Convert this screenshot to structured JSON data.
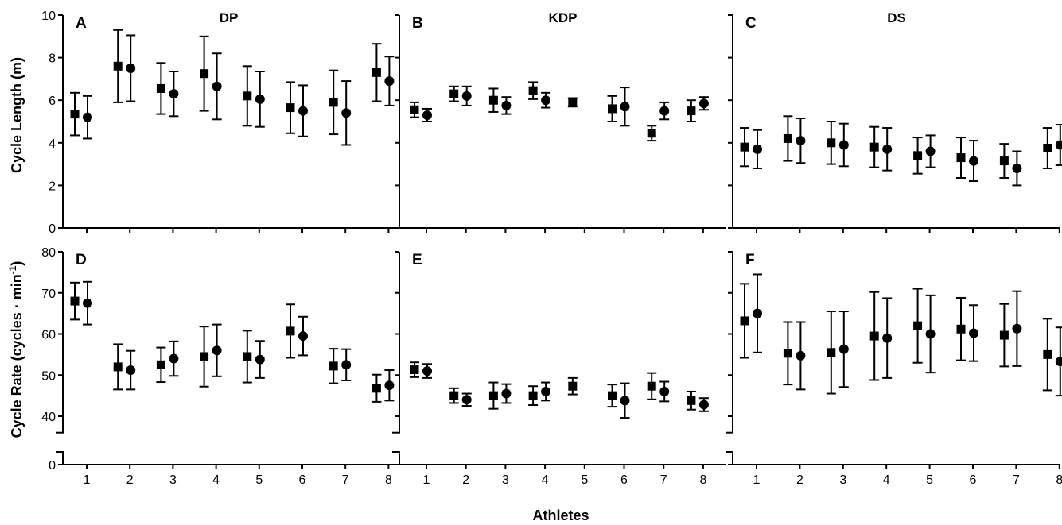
{
  "figure": {
    "xlabel": "Athletes",
    "ylabel_top": "Cycle Length (m)",
    "ylabel_bottom_main": "Cycle Rate (cycles · min",
    "ylabel_bottom_sup": "-1",
    "ylabel_bottom_end": ")"
  },
  "chart_data": [
    {
      "type": "scatter",
      "panel": "A",
      "title": "DP",
      "ylim": [
        0,
        10
      ],
      "yticks": [
        0,
        2,
        4,
        6,
        8,
        10
      ],
      "xticks": [
        1,
        2,
        3,
        4,
        5,
        6,
        7,
        8
      ],
      "series": [
        {
          "marker": "square",
          "mean": [
            5.35,
            7.6,
            6.55,
            7.25,
            6.2,
            5.65,
            5.9,
            7.3
          ],
          "sd": [
            1.0,
            1.7,
            1.2,
            1.75,
            1.4,
            1.2,
            1.5,
            1.35
          ]
        },
        {
          "marker": "circle",
          "mean": [
            5.2,
            7.5,
            6.3,
            6.65,
            6.05,
            5.5,
            5.4,
            6.9
          ],
          "sd": [
            1.0,
            1.55,
            1.05,
            1.55,
            1.3,
            1.2,
            1.5,
            1.15
          ]
        }
      ]
    },
    {
      "type": "scatter",
      "panel": "B",
      "title": "KDP",
      "ylim": [
        0,
        10
      ],
      "yticks": [
        0,
        2,
        4,
        6,
        8,
        10
      ],
      "xticks": [
        1,
        2,
        3,
        4,
        5,
        6,
        7,
        8
      ],
      "series": [
        {
          "marker": "square",
          "mean": [
            5.55,
            6.3,
            6.0,
            6.45,
            5.9,
            5.6,
            4.45,
            5.5
          ],
          "sd": [
            0.35,
            0.35,
            0.55,
            0.4,
            0.2,
            0.6,
            0.35,
            0.5
          ]
        },
        {
          "marker": "circle",
          "mean": [
            5.3,
            6.2,
            5.75,
            6.0,
            null,
            5.7,
            5.5,
            5.85
          ],
          "sd": [
            0.3,
            0.45,
            0.4,
            0.35,
            null,
            0.9,
            0.4,
            0.3
          ]
        }
      ]
    },
    {
      "type": "scatter",
      "panel": "C",
      "title": "DS",
      "ylim": [
        0,
        10
      ],
      "yticks": [
        0,
        2,
        4,
        6,
        8,
        10
      ],
      "xticks": [
        1,
        2,
        3,
        4,
        5,
        6,
        7,
        8
      ],
      "series": [
        {
          "marker": "square",
          "mean": [
            3.8,
            4.2,
            4.0,
            3.8,
            3.4,
            3.3,
            3.15,
            3.75
          ],
          "sd": [
            0.9,
            1.05,
            1.0,
            0.95,
            0.85,
            0.95,
            0.8,
            0.95
          ]
        },
        {
          "marker": "circle",
          "mean": [
            3.7,
            4.1,
            3.9,
            3.7,
            3.6,
            3.15,
            2.8,
            3.9
          ],
          "sd": [
            0.9,
            1.05,
            1.0,
            1.0,
            0.75,
            0.95,
            0.8,
            0.95
          ]
        }
      ]
    },
    {
      "type": "scatter",
      "panel": "D",
      "ylim": [
        0,
        80
      ],
      "yticks": [
        0,
        40,
        50,
        60,
        70,
        80
      ],
      "axis_break": [
        8,
        36
      ],
      "xticks": [
        1,
        2,
        3,
        4,
        5,
        6,
        7,
        8
      ],
      "series": [
        {
          "marker": "square",
          "mean": [
            68,
            52,
            52.5,
            54.5,
            54.5,
            60.7,
            52.2,
            46.8
          ],
          "sd": [
            4.5,
            5.5,
            4.2,
            7.3,
            6.3,
            6.5,
            4.2,
            3.3
          ]
        },
        {
          "marker": "circle",
          "mean": [
            67.5,
            51.2,
            54,
            56,
            53.8,
            59.5,
            52.5,
            47.5
          ],
          "sd": [
            5.2,
            4.7,
            4.2,
            6.3,
            4.5,
            4.7,
            3.8,
            3.7
          ]
        }
      ]
    },
    {
      "type": "scatter",
      "panel": "E",
      "ylim": [
        0,
        80
      ],
      "yticks": [
        0,
        40,
        50,
        60,
        70,
        80
      ],
      "axis_break": [
        8,
        36
      ],
      "xticks": [
        1,
        2,
        3,
        4,
        5,
        6,
        7,
        8
      ],
      "series": [
        {
          "marker": "square",
          "mean": [
            51.3,
            45,
            45,
            45,
            47.3,
            45,
            47.3,
            43.8
          ],
          "sd": [
            1.8,
            1.8,
            3.2,
            2.3,
            2.0,
            2.7,
            3.2,
            2.2
          ]
        },
        {
          "marker": "circle",
          "mean": [
            51,
            44,
            45.5,
            46,
            null,
            43.8,
            46,
            42.8
          ],
          "sd": [
            1.7,
            1.5,
            2.3,
            2.2,
            null,
            4.2,
            2.4,
            1.6
          ]
        }
      ]
    },
    {
      "type": "scatter",
      "panel": "F",
      "ylim": [
        0,
        80
      ],
      "yticks": [
        0,
        40,
        50,
        60,
        70,
        80
      ],
      "axis_break": [
        8,
        36
      ],
      "xticks": [
        1,
        2,
        3,
        4,
        5,
        6,
        7,
        8
      ],
      "series": [
        {
          "marker": "square",
          "mean": [
            63.2,
            55.3,
            55.5,
            59.5,
            62,
            61.2,
            59.7,
            55
          ],
          "sd": [
            9.0,
            7.6,
            10.0,
            10.7,
            9.0,
            7.6,
            7.6,
            8.7
          ]
        },
        {
          "marker": "circle",
          "mean": [
            65,
            54.7,
            56.3,
            59,
            60,
            60.2,
            61.3,
            53.3
          ],
          "sd": [
            9.5,
            8.2,
            9.2,
            9.7,
            9.4,
            6.8,
            9.1,
            8.3
          ]
        }
      ]
    }
  ]
}
